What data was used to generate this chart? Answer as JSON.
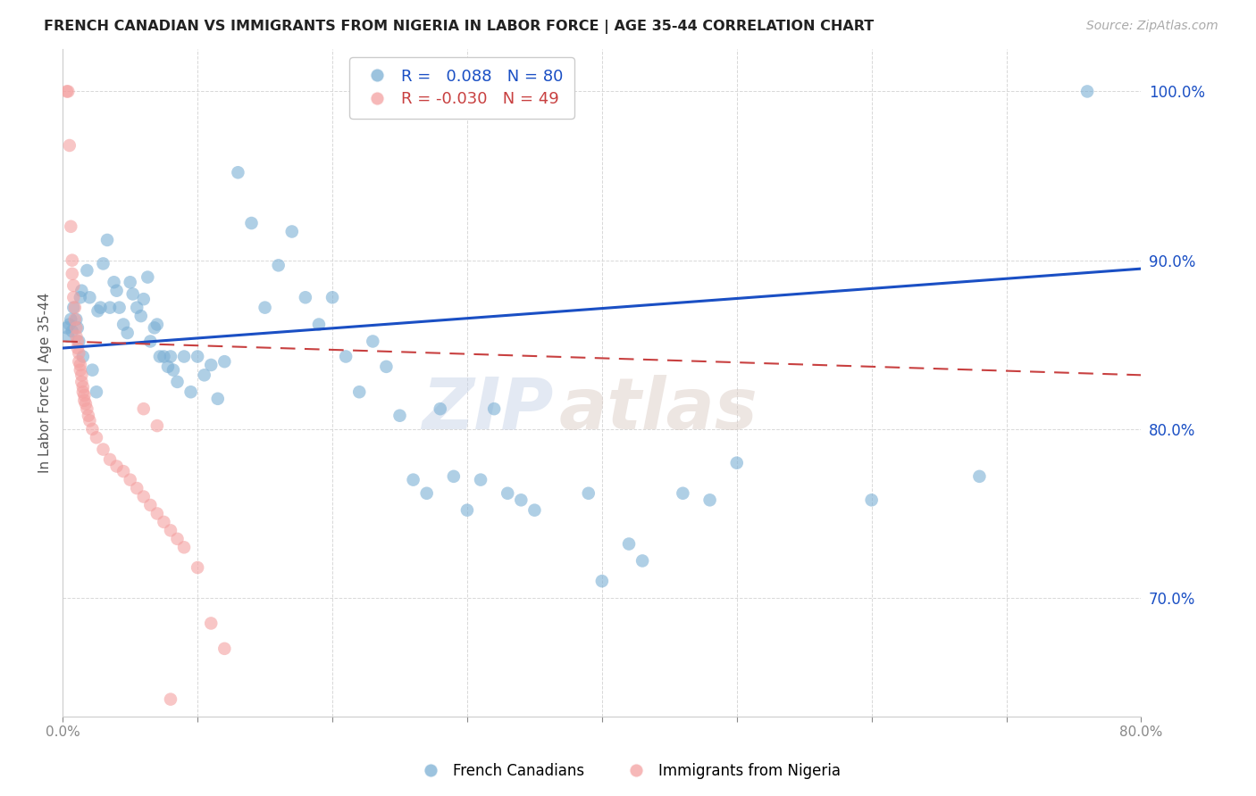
{
  "title": "FRENCH CANADIAN VS IMMIGRANTS FROM NIGERIA IN LABOR FORCE | AGE 35-44 CORRELATION CHART",
  "source": "Source: ZipAtlas.com",
  "ylabel": "In Labor Force | Age 35-44",
  "r_blue": 0.088,
  "n_blue": 80,
  "r_pink": -0.03,
  "n_pink": 49,
  "xlim": [
    0.0,
    0.8
  ],
  "ylim": [
    0.63,
    1.025
  ],
  "yticks": [
    0.7,
    0.8,
    0.9,
    1.0
  ],
  "xticks": [
    0.0,
    0.1,
    0.2,
    0.3,
    0.4,
    0.5,
    0.6,
    0.7,
    0.8
  ],
  "blue_scatter": [
    [
      0.003,
      0.86
    ],
    [
      0.004,
      0.855
    ],
    [
      0.005,
      0.862
    ],
    [
      0.006,
      0.865
    ],
    [
      0.007,
      0.858
    ],
    [
      0.008,
      0.872
    ],
    [
      0.01,
      0.865
    ],
    [
      0.011,
      0.86
    ],
    [
      0.012,
      0.852
    ],
    [
      0.013,
      0.878
    ],
    [
      0.014,
      0.882
    ],
    [
      0.015,
      0.843
    ],
    [
      0.018,
      0.894
    ],
    [
      0.02,
      0.878
    ],
    [
      0.022,
      0.835
    ],
    [
      0.025,
      0.822
    ],
    [
      0.026,
      0.87
    ],
    [
      0.028,
      0.872
    ],
    [
      0.03,
      0.898
    ],
    [
      0.033,
      0.912
    ],
    [
      0.035,
      0.872
    ],
    [
      0.038,
      0.887
    ],
    [
      0.04,
      0.882
    ],
    [
      0.042,
      0.872
    ],
    [
      0.045,
      0.862
    ],
    [
      0.048,
      0.857
    ],
    [
      0.05,
      0.887
    ],
    [
      0.052,
      0.88
    ],
    [
      0.055,
      0.872
    ],
    [
      0.058,
      0.867
    ],
    [
      0.06,
      0.877
    ],
    [
      0.063,
      0.89
    ],
    [
      0.065,
      0.852
    ],
    [
      0.068,
      0.86
    ],
    [
      0.07,
      0.862
    ],
    [
      0.072,
      0.843
    ],
    [
      0.075,
      0.843
    ],
    [
      0.078,
      0.837
    ],
    [
      0.08,
      0.843
    ],
    [
      0.082,
      0.835
    ],
    [
      0.085,
      0.828
    ],
    [
      0.09,
      0.843
    ],
    [
      0.095,
      0.822
    ],
    [
      0.1,
      0.843
    ],
    [
      0.105,
      0.832
    ],
    [
      0.11,
      0.838
    ],
    [
      0.115,
      0.818
    ],
    [
      0.12,
      0.84
    ],
    [
      0.13,
      0.952
    ],
    [
      0.14,
      0.922
    ],
    [
      0.15,
      0.872
    ],
    [
      0.16,
      0.897
    ],
    [
      0.17,
      0.917
    ],
    [
      0.18,
      0.878
    ],
    [
      0.19,
      0.862
    ],
    [
      0.2,
      0.878
    ],
    [
      0.21,
      0.843
    ],
    [
      0.22,
      0.822
    ],
    [
      0.23,
      0.852
    ],
    [
      0.24,
      0.837
    ],
    [
      0.25,
      0.808
    ],
    [
      0.26,
      0.77
    ],
    [
      0.27,
      0.762
    ],
    [
      0.28,
      0.812
    ],
    [
      0.29,
      0.772
    ],
    [
      0.3,
      0.752
    ],
    [
      0.31,
      0.77
    ],
    [
      0.32,
      0.812
    ],
    [
      0.33,
      0.762
    ],
    [
      0.34,
      0.758
    ],
    [
      0.35,
      0.752
    ],
    [
      0.39,
      0.762
    ],
    [
      0.4,
      0.71
    ],
    [
      0.42,
      0.732
    ],
    [
      0.43,
      0.722
    ],
    [
      0.46,
      0.762
    ],
    [
      0.48,
      0.758
    ],
    [
      0.5,
      0.78
    ],
    [
      0.6,
      0.758
    ],
    [
      0.68,
      0.772
    ],
    [
      0.76,
      1.0
    ]
  ],
  "pink_scatter": [
    [
      0.003,
      1.0
    ],
    [
      0.004,
      1.0
    ],
    [
      0.005,
      0.968
    ],
    [
      0.006,
      0.92
    ],
    [
      0.007,
      0.9
    ],
    [
      0.007,
      0.892
    ],
    [
      0.008,
      0.885
    ],
    [
      0.008,
      0.878
    ],
    [
      0.009,
      0.872
    ],
    [
      0.009,
      0.865
    ],
    [
      0.01,
      0.86
    ],
    [
      0.01,
      0.855
    ],
    [
      0.011,
      0.852
    ],
    [
      0.011,
      0.848
    ],
    [
      0.012,
      0.845
    ],
    [
      0.012,
      0.84
    ],
    [
      0.013,
      0.838
    ],
    [
      0.013,
      0.835
    ],
    [
      0.014,
      0.832
    ],
    [
      0.014,
      0.828
    ],
    [
      0.015,
      0.825
    ],
    [
      0.015,
      0.822
    ],
    [
      0.016,
      0.82
    ],
    [
      0.016,
      0.817
    ],
    [
      0.017,
      0.815
    ],
    [
      0.018,
      0.812
    ],
    [
      0.019,
      0.808
    ],
    [
      0.02,
      0.805
    ],
    [
      0.022,
      0.8
    ],
    [
      0.025,
      0.795
    ],
    [
      0.03,
      0.788
    ],
    [
      0.035,
      0.782
    ],
    [
      0.04,
      0.778
    ],
    [
      0.045,
      0.775
    ],
    [
      0.05,
      0.77
    ],
    [
      0.055,
      0.765
    ],
    [
      0.06,
      0.76
    ],
    [
      0.065,
      0.755
    ],
    [
      0.07,
      0.75
    ],
    [
      0.075,
      0.745
    ],
    [
      0.08,
      0.74
    ],
    [
      0.085,
      0.735
    ],
    [
      0.09,
      0.73
    ],
    [
      0.1,
      0.718
    ],
    [
      0.11,
      0.685
    ],
    [
      0.12,
      0.67
    ],
    [
      0.06,
      0.812
    ],
    [
      0.07,
      0.802
    ],
    [
      0.08,
      0.64
    ]
  ],
  "blue_color": "#7BAFD4",
  "pink_color": "#F4A0A0",
  "trend_blue": "#1A4FC4",
  "trend_pink": "#C84040",
  "background_color": "#ffffff",
  "grid_color": "#d8d8d8",
  "watermark_zip": "ZIP",
  "watermark_atlas": "atlas",
  "legend_label_blue": "French Canadians",
  "legend_label_pink": "Immigrants from Nigeria",
  "blue_trend_y0": 0.848,
  "blue_trend_y1": 0.895,
  "pink_trend_y0": 0.852,
  "pink_trend_y1": 0.832
}
